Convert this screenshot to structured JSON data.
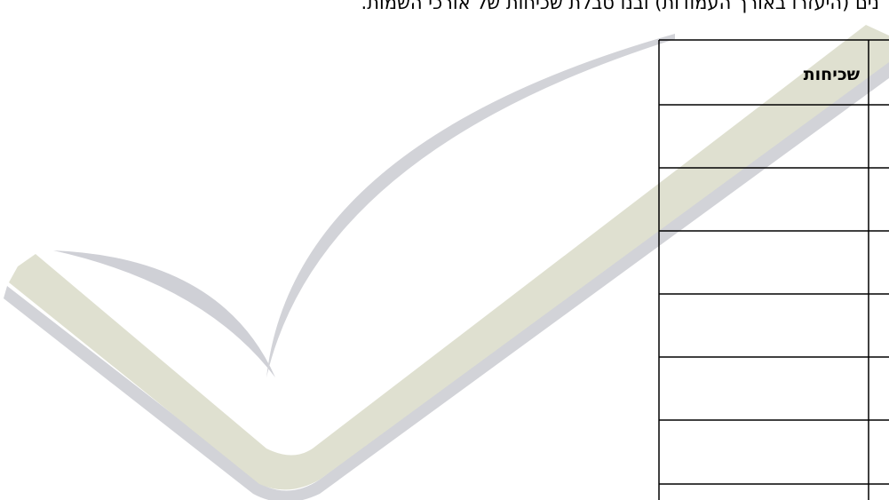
{
  "header": {
    "text": "נים (היעזרו באורך העמודות) ובנו טבלת שכיחות של אורכי השמות."
  },
  "table": {
    "columns": [
      "שכיחות"
    ]
  }
}
